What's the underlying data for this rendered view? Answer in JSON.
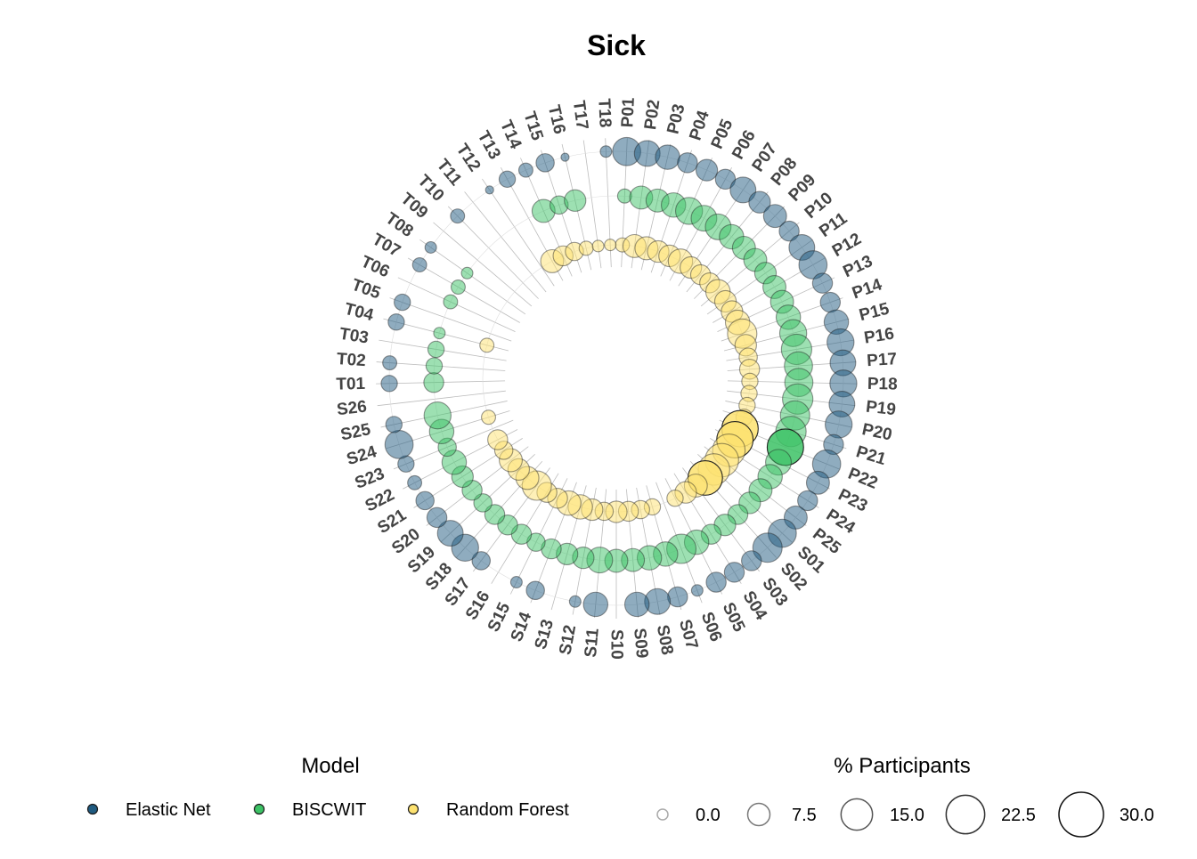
{
  "chart_data": {
    "type": "scatter",
    "subtype": "circular-bubble",
    "title": "Sick",
    "categories": [
      "P01",
      "P02",
      "P03",
      "P04",
      "P05",
      "P06",
      "P07",
      "P08",
      "P09",
      "P10",
      "P11",
      "P12",
      "P13",
      "P14",
      "P15",
      "P16",
      "P17",
      "P18",
      "P19",
      "P20",
      "P21",
      "P22",
      "P23",
      "P24",
      "P25",
      "S01",
      "S02",
      "S03",
      "S04",
      "S05",
      "S06",
      "S07",
      "S08",
      "S09",
      "S10",
      "S11",
      "S12",
      "S13",
      "S14",
      "S15",
      "S16",
      "S17",
      "S18",
      "S19",
      "S20",
      "S21",
      "S22",
      "S23",
      "S24",
      "S25",
      "S26",
      "T01",
      "T02",
      "T03",
      "T04",
      "T05",
      "T06",
      "T07",
      "T08",
      "T09",
      "T10",
      "T11",
      "T12",
      "T13",
      "T14",
      "T15",
      "T16",
      "T17",
      "T18"
    ],
    "series": [
      {
        "name": "Elastic Net",
        "color": "#1F5A80",
        "values": [
          12,
          10,
          9,
          6,
          7,
          6,
          10,
          7,
          8,
          6,
          10,
          12,
          6,
          6,
          9,
          11,
          10,
          11,
          10,
          11,
          6,
          12,
          8,
          6,
          8,
          12,
          13,
          6,
          6,
          6,
          2,
          6,
          10,
          9,
          0,
          9,
          2,
          0,
          5,
          2,
          0,
          5,
          11,
          10,
          6,
          5,
          3,
          4,
          12,
          4,
          0,
          4,
          3,
          0,
          4,
          4,
          0,
          3,
          2,
          0,
          3,
          0,
          1,
          4,
          3,
          5,
          1,
          0,
          2
        ]
      },
      {
        "name": "BISCWIT",
        "color": "#3CC265",
        "values": [
          3,
          8,
          8,
          9,
          11,
          10,
          10,
          9,
          8,
          8,
          7,
          8,
          8,
          9,
          11,
          14,
          12,
          12,
          14,
          13,
          14,
          20,
          10,
          9,
          8,
          7,
          6,
          7,
          6,
          9,
          13,
          9,
          9,
          8,
          8,
          10,
          7,
          7,
          6,
          5,
          6,
          6,
          6,
          5,
          6,
          7,
          9,
          5,
          9,
          11,
          0,
          6,
          4,
          4,
          2,
          0,
          3,
          3,
          2,
          0,
          0,
          0,
          0,
          0,
          8,
          5,
          7,
          0,
          0
        ]
      },
      {
        "name": "Random Forest",
        "color": "#FDE270",
        "values": [
          3,
          8,
          8,
          7,
          7,
          9,
          7,
          6,
          6,
          9,
          7,
          7,
          9,
          13,
          7,
          5,
          6,
          4,
          4,
          4,
          4,
          20,
          20,
          16,
          17,
          15,
          18,
          8,
          7,
          4,
          0,
          4,
          5,
          6,
          7,
          5,
          7,
          9,
          9,
          6,
          6,
          13,
          8,
          7,
          8,
          5,
          6,
          0,
          3,
          0,
          0,
          0,
          0,
          0,
          3,
          0,
          0,
          0,
          0,
          0,
          0,
          0,
          0,
          8,
          6,
          5,
          3,
          2,
          2
        ]
      }
    ],
    "legend": {
      "color_title": "Model",
      "size_title": "% Participants",
      "size_breaks": [
        0,
        7.5,
        15,
        22.5,
        30
      ],
      "size_labels": [
        "0.0",
        "7.5",
        "15.0",
        "22.5",
        "30.0"
      ],
      "placement": "bottom"
    },
    "grid": true
  }
}
